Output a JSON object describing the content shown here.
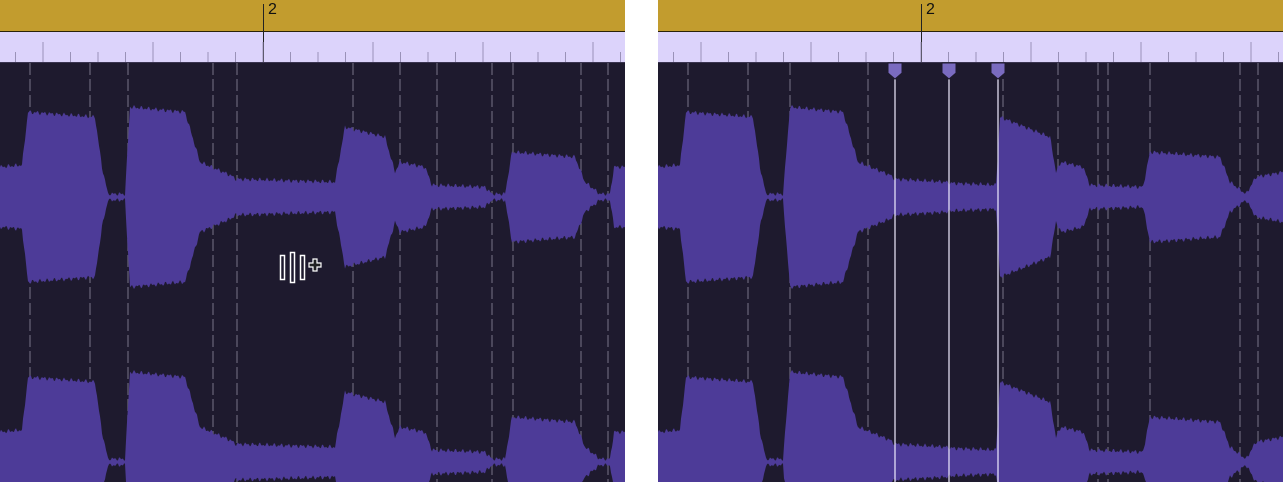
{
  "left_panel": {
    "bar_label": "2",
    "cursor": "flex-marker-add-cursor-icon"
  },
  "right_panel": {
    "bar_label": "2",
    "flex_markers": 3
  },
  "colors": {
    "bar_ruler": "#c29c2e",
    "beat_ruler": "#dcd3fb",
    "background": "#1e1a2e",
    "waveform": "#4d3b98",
    "flex_marker": "#7a6bc0"
  }
}
